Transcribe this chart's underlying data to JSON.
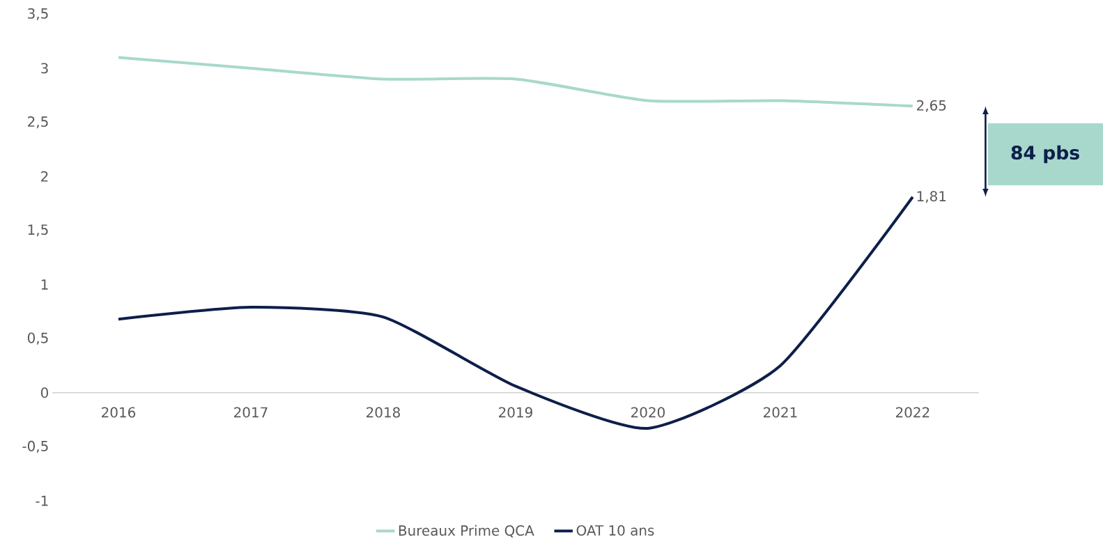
{
  "chart_data": {
    "type": "line",
    "categories": [
      "2016",
      "2017",
      "2018",
      "2019",
      "2020",
      "2021",
      "2022"
    ],
    "series": [
      {
        "name": "Bureaux Prime QCA",
        "color": "#a8d8cc",
        "values": [
          3.1,
          3.0,
          2.9,
          2.9,
          2.7,
          2.7,
          2.65
        ],
        "value_labels": [
          null,
          null,
          null,
          null,
          null,
          null,
          "2,65"
        ]
      },
      {
        "name": "OAT 10 ans",
        "color": "#0d1f4a",
        "values": [
          0.68,
          0.79,
          0.7,
          0.06,
          -0.33,
          0.25,
          1.81
        ],
        "value_labels": [
          null,
          null,
          null,
          null,
          null,
          null,
          "1,81"
        ]
      }
    ],
    "ylim": [
      -1,
      3.5
    ],
    "yticks": [
      {
        "value": -1,
        "label": "-1"
      },
      {
        "value": -0.5,
        "label": "-0,5"
      },
      {
        "value": 0,
        "label": "0"
      },
      {
        "value": 0.5,
        "label": "0,5"
      },
      {
        "value": 1,
        "label": "1"
      },
      {
        "value": 1.5,
        "label": "1,5"
      },
      {
        "value": 2,
        "label": "2"
      },
      {
        "value": 2.5,
        "label": "2,5"
      },
      {
        "value": 3,
        "label": "3"
      },
      {
        "value": 3.5,
        "label": "3,5"
      }
    ],
    "annotations": [
      "84 pbs"
    ],
    "legend": "bottom",
    "grid": false,
    "marker": "none",
    "line_style": "solid"
  }
}
